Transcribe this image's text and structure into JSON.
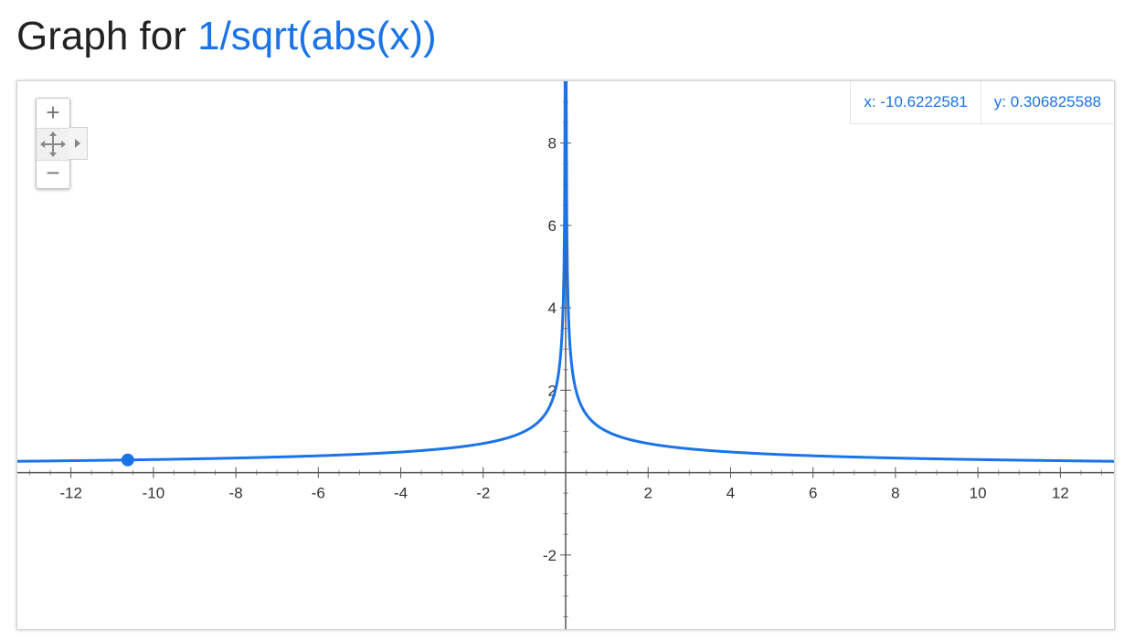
{
  "header": {
    "prefix": "Graph for",
    "expression": "1/sqrt(abs(x))"
  },
  "readout": {
    "x_label": "x: -10.6222581",
    "y_label": "y: 0.306825588"
  },
  "controls": {
    "zoom_in_icon": "plus-icon",
    "pan_icon": "move-icon",
    "zoom_out_icon": "minus-icon",
    "pan_expand_icon": "triangle-right-icon"
  },
  "colors": {
    "curve": "#1a73e8",
    "axis": "#555555",
    "grid_minor": "#dddddd"
  },
  "chart_data": {
    "type": "line",
    "title": "",
    "xlabel": "",
    "ylabel": "",
    "function": "1/sqrt(abs(x))",
    "xlim": [
      -13.3,
      13.3
    ],
    "ylim": [
      -3.8,
      9.5
    ],
    "x_ticks": [
      -12,
      -10,
      -8,
      -6,
      -4,
      -2,
      2,
      4,
      6,
      8,
      10,
      12
    ],
    "y_ticks": [
      -2,
      2,
      4,
      6,
      8
    ],
    "grid": false,
    "highlight_point": {
      "x": -10.6222581,
      "y": 0.306825588
    },
    "series": [
      {
        "x": [
          -13.3,
          -12,
          -10,
          -8,
          -6,
          -4,
          -3,
          -2,
          -1.5,
          -1,
          -0.5,
          -0.25,
          -0.1,
          -0.05,
          -0.02,
          0.02,
          0.05,
          0.1,
          0.25,
          0.5,
          1,
          1.5,
          2,
          3,
          4,
          6,
          8,
          10,
          12,
          13.3
        ],
        "y": [
          0.274,
          0.289,
          0.316,
          0.354,
          0.408,
          0.5,
          0.577,
          0.707,
          0.816,
          1.0,
          1.414,
          2.0,
          3.162,
          4.472,
          7.071,
          7.071,
          4.472,
          3.162,
          2.0,
          1.414,
          1.0,
          0.816,
          0.707,
          0.577,
          0.5,
          0.408,
          0.354,
          0.316,
          0.289,
          0.274
        ]
      }
    ]
  }
}
